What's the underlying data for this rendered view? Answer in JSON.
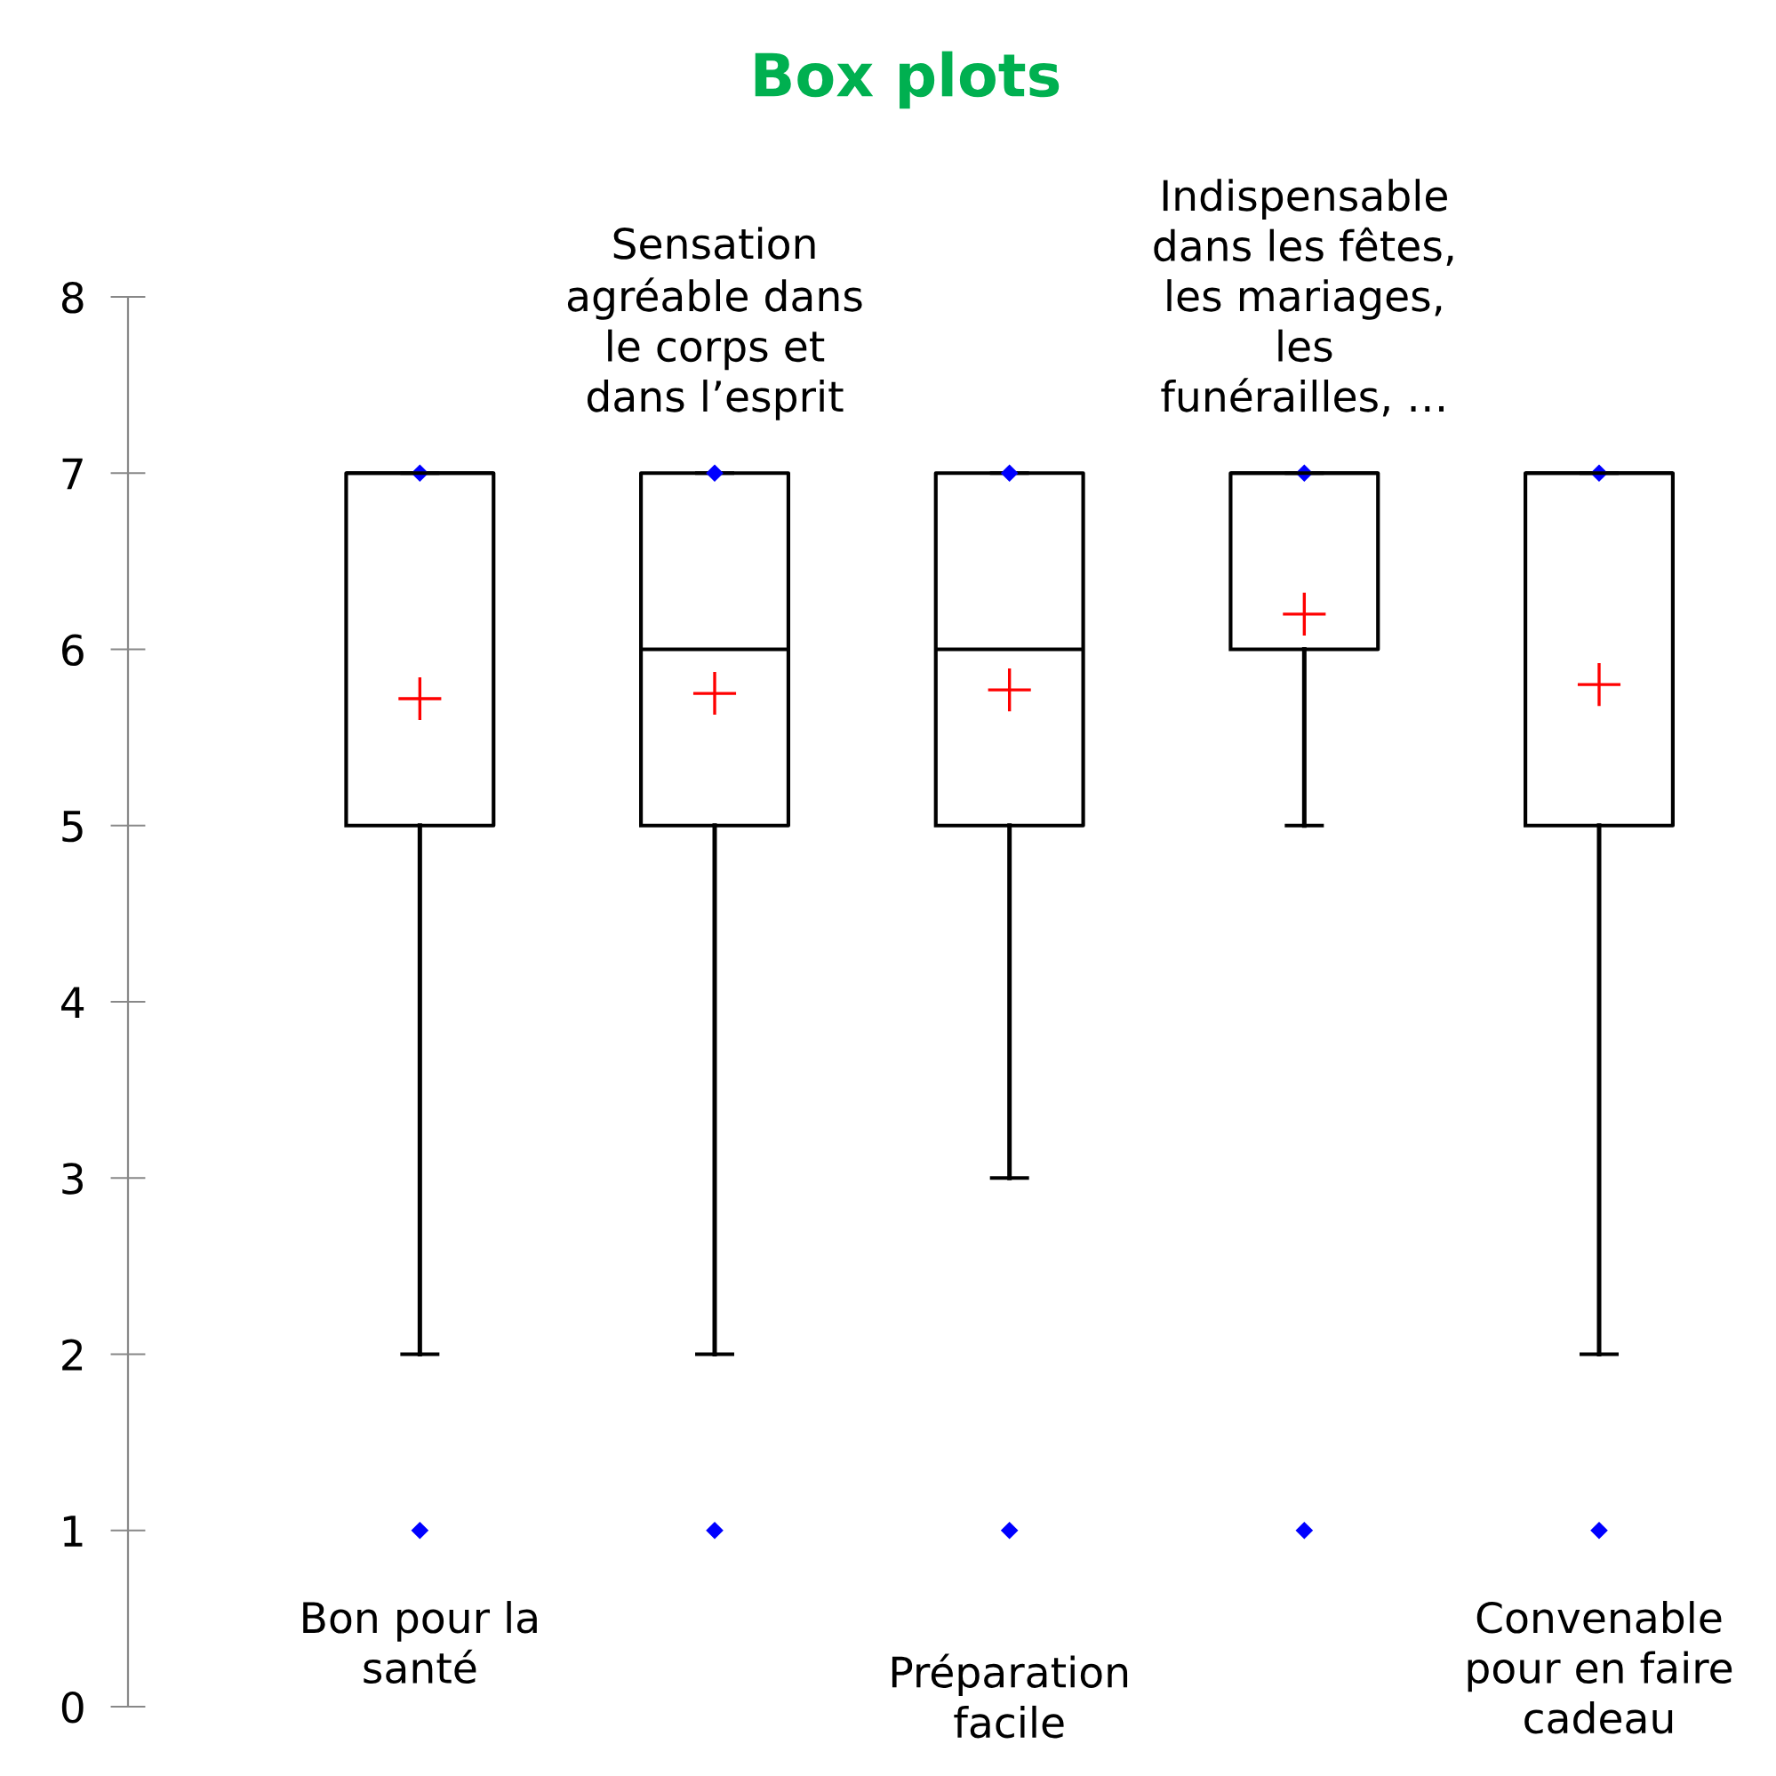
{
  "chart_data": {
    "type": "box",
    "title": "Box plots",
    "categories": [
      "Bon pour la\nsanté",
      "Sensation\nagréable dans\nle corps et\ndans l’esprit",
      "Préparation\nfacile",
      "Indispensable\ndans les fêtes,\nles mariages,\nles\nfunérailles, …",
      "Convenable\npour en faire\ncadeau"
    ],
    "boxes": [
      {
        "low": 2,
        "q1": 5,
        "median": 7,
        "q3": 7,
        "high": 7,
        "mean": 5.72,
        "outliers": [
          1,
          7
        ]
      },
      {
        "low": 2,
        "q1": 5,
        "median": 6,
        "q3": 7,
        "high": 7,
        "mean": 5.75,
        "outliers": [
          1,
          7
        ]
      },
      {
        "low": 3,
        "q1": 5,
        "median": 6,
        "q3": 7,
        "high": 7,
        "mean": 5.77,
        "outliers": [
          1,
          7
        ]
      },
      {
        "low": 5,
        "q1": 6,
        "median": 7,
        "q3": 7,
        "high": 7,
        "mean": 6.2,
        "outliers": [
          1,
          7
        ]
      },
      {
        "low": 2,
        "q1": 5,
        "median": 7,
        "q3": 7,
        "high": 7,
        "mean": 5.8,
        "outliers": [
          1,
          7
        ]
      }
    ],
    "ylim": [
      0,
      8
    ],
    "yticks": [
      0,
      1,
      2,
      3,
      4,
      5,
      6,
      7,
      8
    ],
    "grid": false,
    "legend": false
  }
}
